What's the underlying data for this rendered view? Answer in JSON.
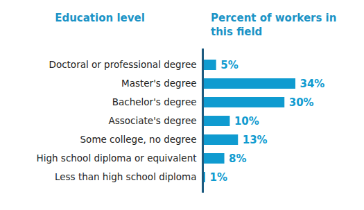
{
  "chart_data": {
    "type": "bar",
    "y_label": "Education level",
    "x_label": "Percent of workers in this field",
    "categories": [
      "Doctoral or professional degree",
      "Master's degree",
      "Bachelor's degree",
      "Associate's degree",
      "Some college, no degree",
      "High school diploma or equivalent",
      "Less than high school diploma"
    ],
    "values": [
      5,
      34,
      30,
      10,
      13,
      8,
      1
    ],
    "value_labels": [
      "5%",
      "34%",
      "30%",
      "10%",
      "13%",
      "8%",
      "1%"
    ],
    "color": "#0f9bd0",
    "xlim": [
      0,
      34
    ],
    "orientation": "horizontal",
    "data_labels": true,
    "tick_labels": "y"
  }
}
